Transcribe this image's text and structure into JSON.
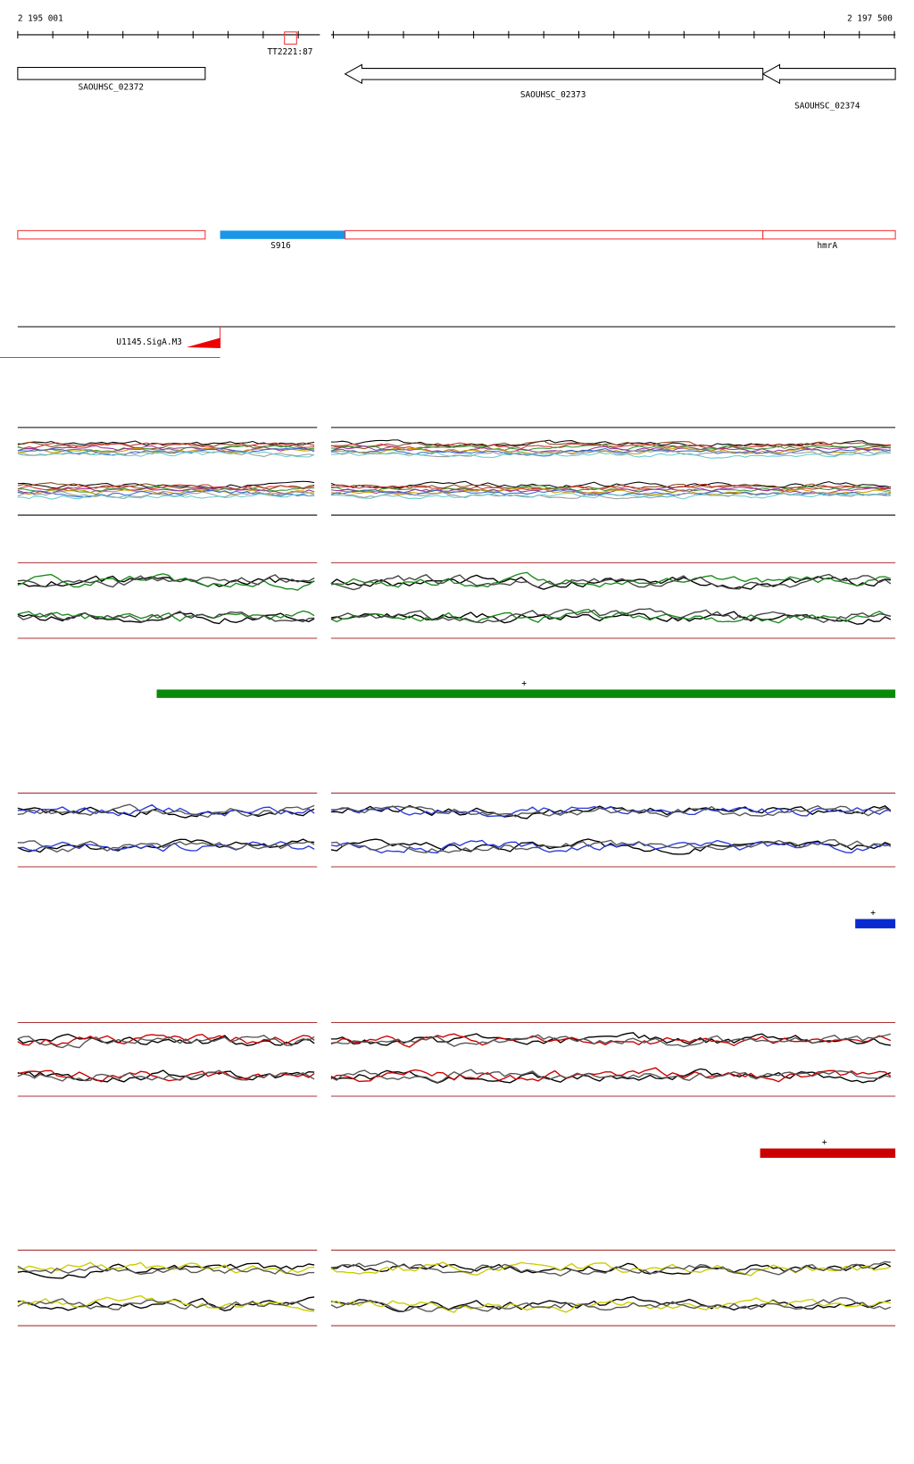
{
  "ruler": {
    "start": "2 195 001",
    "end": "2 197 500"
  },
  "terminator": {
    "label": "TT2221:87"
  },
  "genes": [
    {
      "label": "SAOUHSC_02372"
    },
    {
      "label": "SAOUHSC_02373"
    },
    {
      "label": "SAOUHSC_02374"
    }
  ],
  "transcripts": [
    {
      "label": "S916"
    },
    {
      "label": "hmrA"
    }
  ],
  "promoter": {
    "label": "U1145.SigA.M3"
  },
  "segments": [
    {
      "label": "+"
    },
    {
      "label": "+"
    },
    {
      "label": "+"
    }
  ]
}
